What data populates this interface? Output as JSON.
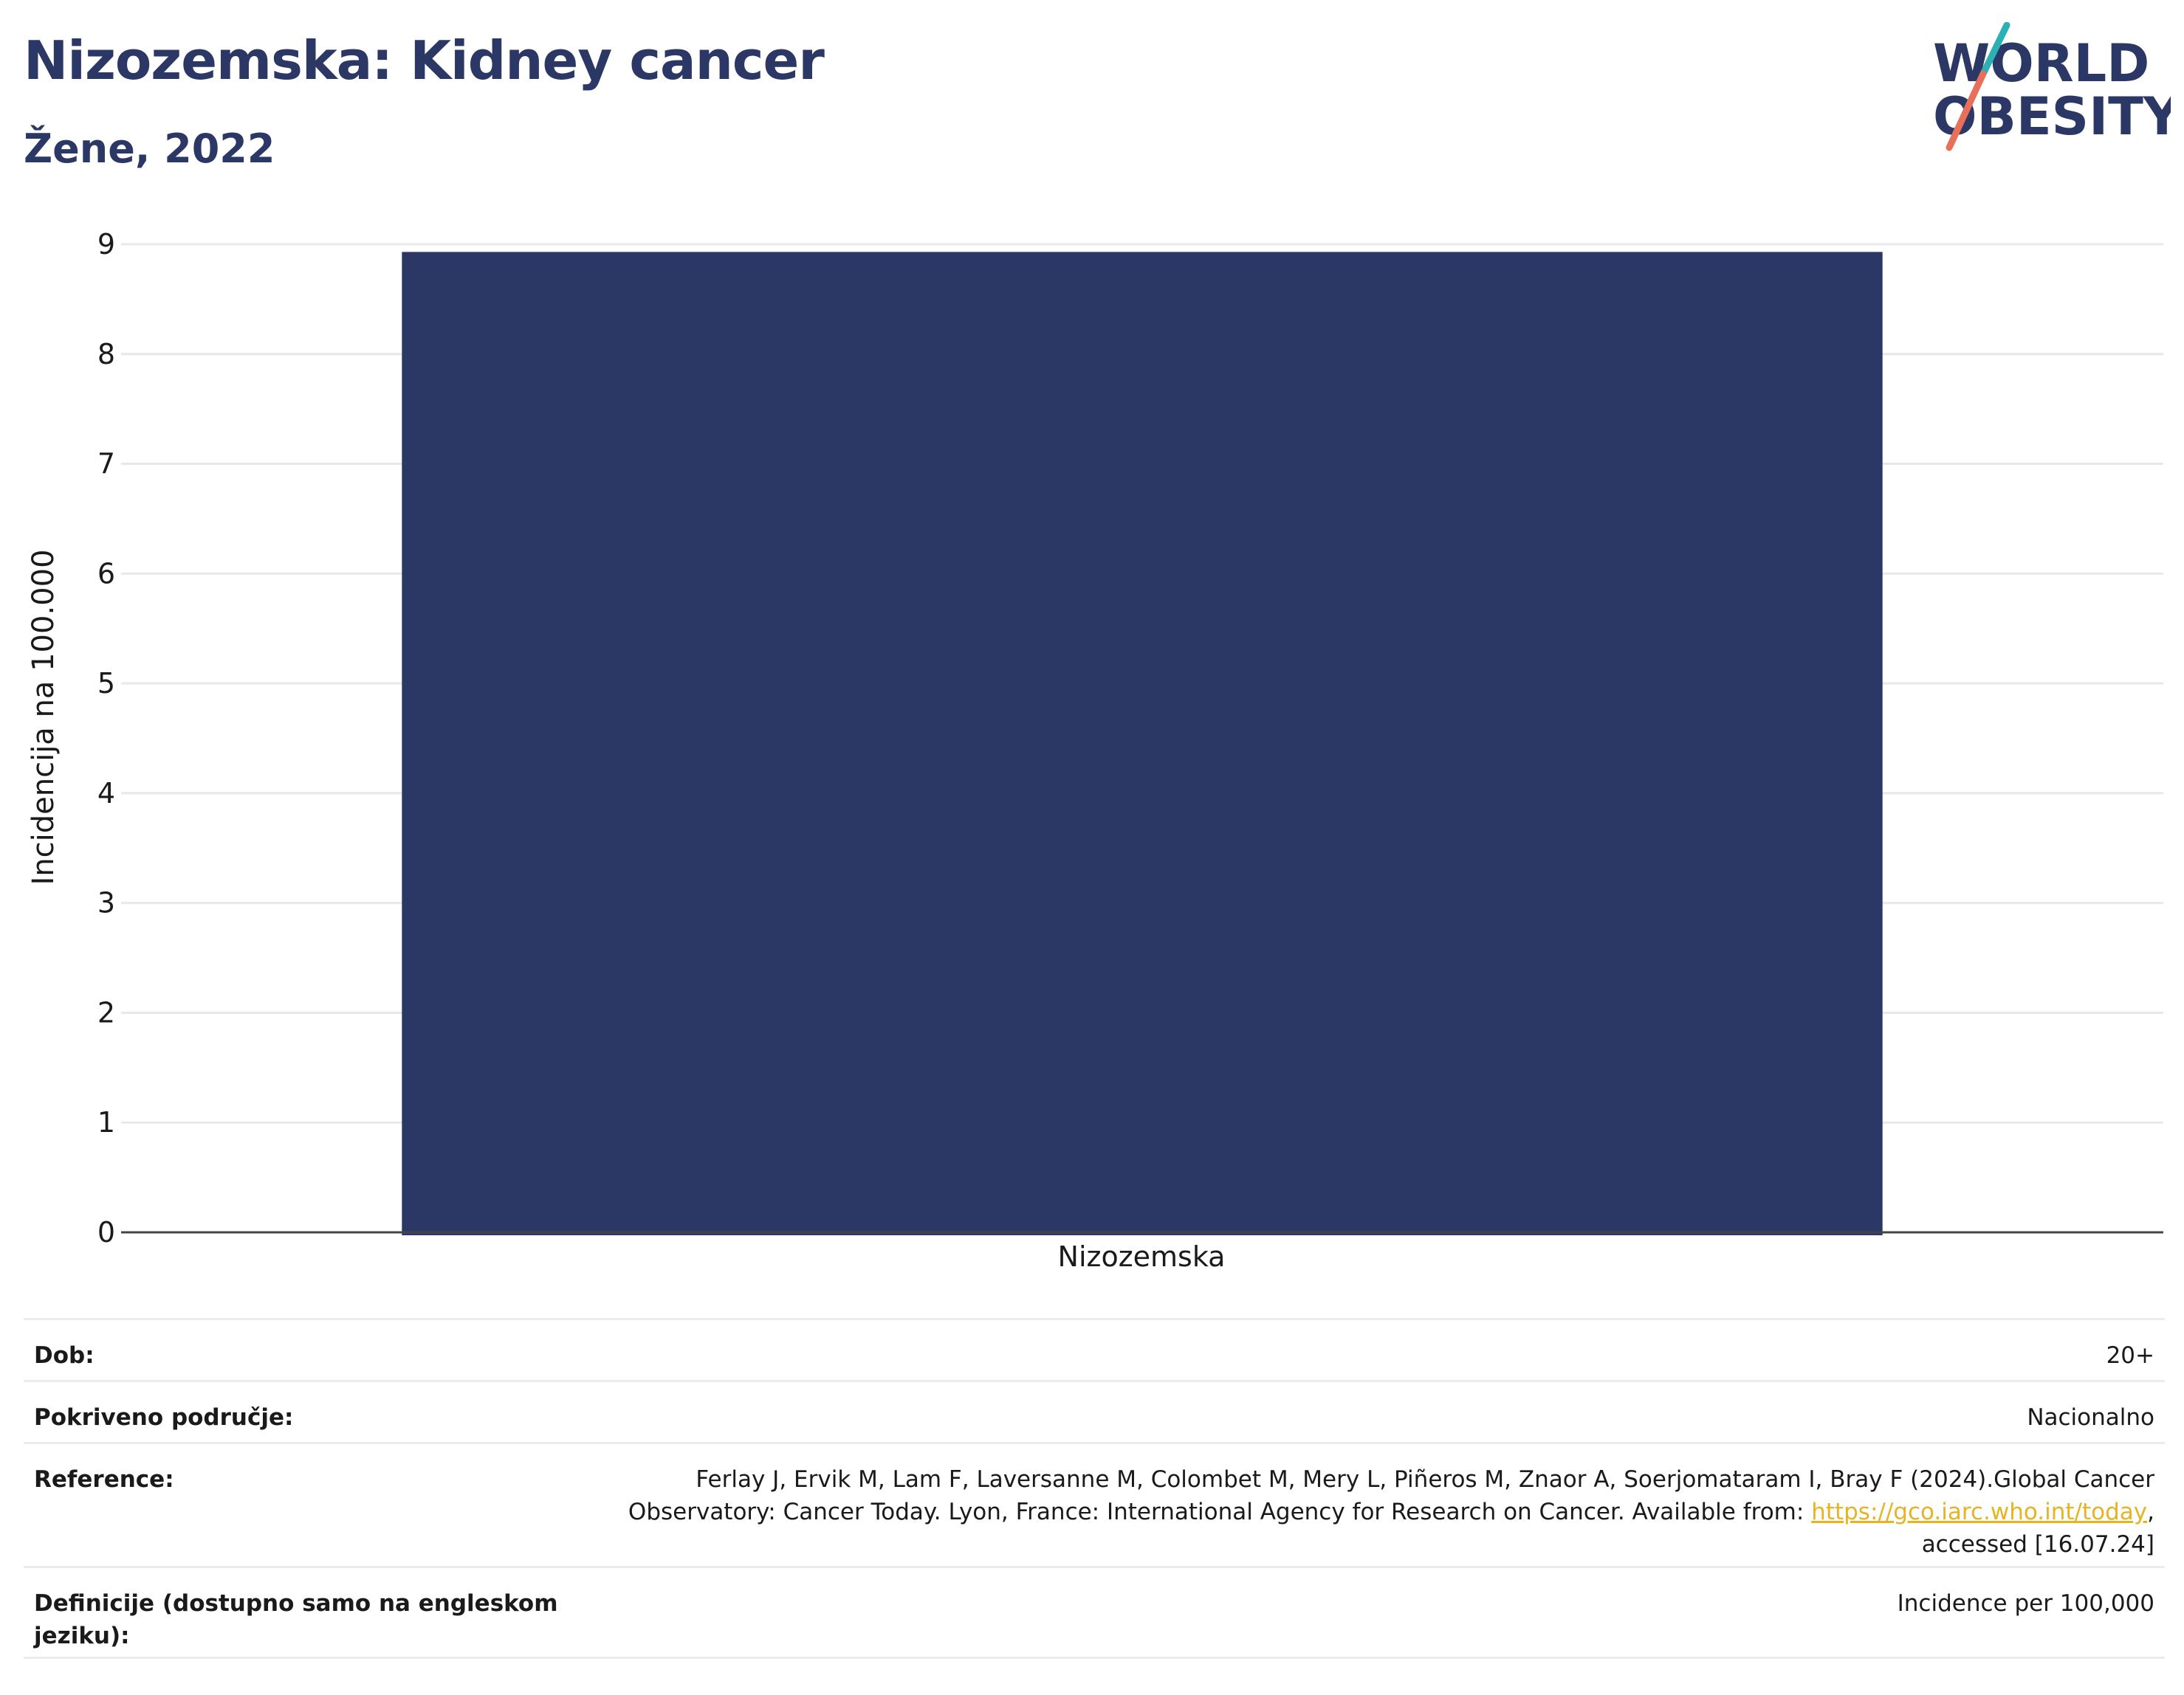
{
  "header": {
    "title": "Nizozemska: Kidney cancer",
    "subtitle": "Žene, 2022"
  },
  "logo": {
    "line1": "WORLD",
    "line2": "OBESITY",
    "colors": {
      "text": "#2b3765",
      "slash_top": "#2bb0b4",
      "slash_bottom": "#e8705a"
    }
  },
  "chart_data": {
    "type": "bar",
    "categories": [
      "Nizozemska"
    ],
    "values": [
      8.93
    ],
    "ylabel": "Incidencija na 100.000",
    "xlabel": "",
    "ylim": [
      0,
      9
    ],
    "yticks": [
      "0",
      "1",
      "2",
      "3",
      "4",
      "5",
      "6",
      "7",
      "8",
      "9"
    ],
    "grid": true,
    "bar_color": "#2b3765"
  },
  "meta": {
    "rows": [
      {
        "label": "Dob:",
        "value": "20+"
      },
      {
        "label": "Pokriveno područje:",
        "value": "Nacionalno"
      },
      {
        "label": "Reference:",
        "value_pre": "Ferlay J, Ervik M, Lam F, Laversanne M, Colombet M, Mery L, Piñeros M, Znaor A, Soerjomataram I, Bray F (2024).Global Cancer Observatory: Cancer Today. Lyon, France: International Agency for Research on Cancer. Available from: ",
        "link": "https://gco.iarc.who.int/today",
        "value_post": ", accessed [16.07.24]"
      },
      {
        "label": "Definicije (dostupno samo na engleskom jeziku):",
        "value": "Incidence per 100,000"
      }
    ]
  }
}
